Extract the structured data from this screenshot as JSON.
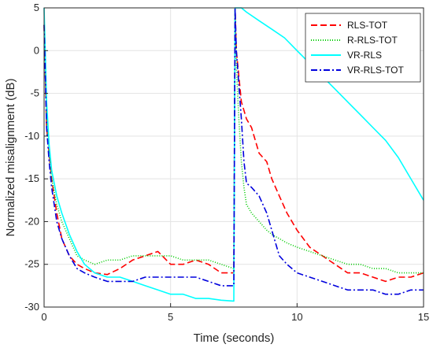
{
  "chart_data": {
    "type": "line",
    "title": "",
    "xlabel": "Time (seconds)",
    "ylabel": "Normalized misalignment (dB)",
    "xlim": [
      0,
      15
    ],
    "ylim": [
      -30,
      5
    ],
    "xticks": [
      0,
      5,
      10,
      15
    ],
    "yticks": [
      -30,
      -25,
      -20,
      -15,
      -10,
      -5,
      0,
      5
    ],
    "grid": true,
    "legend_position": "top-right",
    "series": [
      {
        "name": "RLS-TOT",
        "color": "#ff0000",
        "style": "dashed",
        "x": [
          0,
          0.1,
          0.2,
          0.3,
          0.5,
          0.7,
          1,
          1.3,
          1.6,
          2,
          2.5,
          3,
          3.5,
          4,
          4.5,
          5,
          5.5,
          6,
          6.5,
          7,
          7.5,
          7.55,
          7.6,
          7.7,
          7.8,
          7.9,
          8,
          8.2,
          8.5,
          8.8,
          9,
          9.3,
          9.6,
          10,
          10.5,
          11,
          11.5,
          12,
          12.5,
          13,
          13.5,
          14,
          14.5,
          15
        ],
        "y": [
          3,
          -9,
          -12,
          -15,
          -19,
          -22,
          -24,
          -25,
          -25.5,
          -26,
          -26.2,
          -25.5,
          -24.5,
          -24,
          -23.5,
          -25,
          -25,
          -24.5,
          -25,
          -26,
          -26,
          5,
          0,
          -3,
          -6,
          -7,
          -8,
          -9,
          -12,
          -13,
          -15,
          -17,
          -19,
          -21,
          -23,
          -24,
          -25,
          -26,
          -26,
          -26.5,
          -27,
          -26.5,
          -26.5,
          -26
        ]
      },
      {
        "name": "R-RLS-TOT",
        "color": "#00cc00",
        "style": "dotted",
        "x": [
          0,
          0.1,
          0.2,
          0.3,
          0.5,
          0.7,
          1,
          1.3,
          1.6,
          2,
          2.5,
          3,
          3.5,
          4,
          4.5,
          5,
          5.5,
          6,
          6.5,
          7,
          7.5,
          7.55,
          7.6,
          7.7,
          7.8,
          7.9,
          8,
          8.2,
          8.5,
          8.8,
          9,
          9.3,
          9.6,
          10,
          10.5,
          11,
          11.5,
          12,
          12.5,
          13,
          13.5,
          14,
          14.5,
          15
        ],
        "y": [
          3,
          -8,
          -12,
          -15,
          -18,
          -20,
          -22,
          -24,
          -24.5,
          -25,
          -24.5,
          -24.5,
          -24,
          -24,
          -24,
          -24,
          -24.5,
          -24.5,
          -24.5,
          -25,
          -25.5,
          5,
          -2,
          -8,
          -13,
          -16,
          -18,
          -19,
          -20,
          -21,
          -21.5,
          -22,
          -22.5,
          -23,
          -23.5,
          -24,
          -24.5,
          -25,
          -25,
          -25.5,
          -25.5,
          -26,
          -26,
          -26
        ]
      },
      {
        "name": "VR-RLS",
        "color": "#00ffff",
        "style": "solid",
        "x": [
          0,
          0.1,
          0.2,
          0.3,
          0.5,
          0.7,
          1,
          1.3,
          1.6,
          2,
          2.5,
          3,
          3.5,
          4,
          4.5,
          5,
          5.5,
          6,
          6.5,
          7,
          7.5,
          7.55,
          7.8,
          8,
          8.5,
          9,
          9.5,
          10,
          10.5,
          11,
          11.5,
          12,
          12.5,
          13,
          13.5,
          14,
          14.5,
          15
        ],
        "y": [
          5,
          -6,
          -11,
          -14,
          -17,
          -19,
          -21.5,
          -23.5,
          -25,
          -26,
          -26.5,
          -26.5,
          -27,
          -27.5,
          -28,
          -28.5,
          -28.5,
          -29,
          -29,
          -29.2,
          -29.3,
          5,
          5,
          4.5,
          3.5,
          2.5,
          1.5,
          0,
          -1.5,
          -3,
          -4.5,
          -6,
          -7.5,
          -9,
          -10.5,
          -12.5,
          -15,
          -17.5
        ]
      },
      {
        "name": "VR-RLS-TOT",
        "color": "#0000dd",
        "style": "dashdot",
        "x": [
          0,
          0.1,
          0.2,
          0.3,
          0.5,
          0.7,
          1,
          1.3,
          1.6,
          2,
          2.5,
          3,
          3.5,
          4,
          4.5,
          5,
          5.5,
          6,
          6.5,
          7,
          7.5,
          7.55,
          7.6,
          7.7,
          7.8,
          7.9,
          8,
          8.2,
          8.5,
          8.8,
          9,
          9.3,
          9.6,
          10,
          10.5,
          11,
          11.5,
          12,
          12.5,
          13,
          13.5,
          14,
          14.5,
          15
        ],
        "y": [
          3,
          -9,
          -13,
          -16,
          -20,
          -22,
          -24,
          -25.5,
          -26,
          -26.5,
          -27,
          -27,
          -27,
          -26.5,
          -26.5,
          -26.5,
          -26.5,
          -26.5,
          -27,
          -27.5,
          -27.5,
          5,
          0,
          -4,
          -8,
          -13,
          -15.5,
          -16,
          -17,
          -19,
          -21,
          -24,
          -25,
          -26,
          -26.5,
          -27,
          -27.5,
          -28,
          -28,
          -28,
          -28.5,
          -28.5,
          -28,
          -28
        ]
      }
    ]
  }
}
